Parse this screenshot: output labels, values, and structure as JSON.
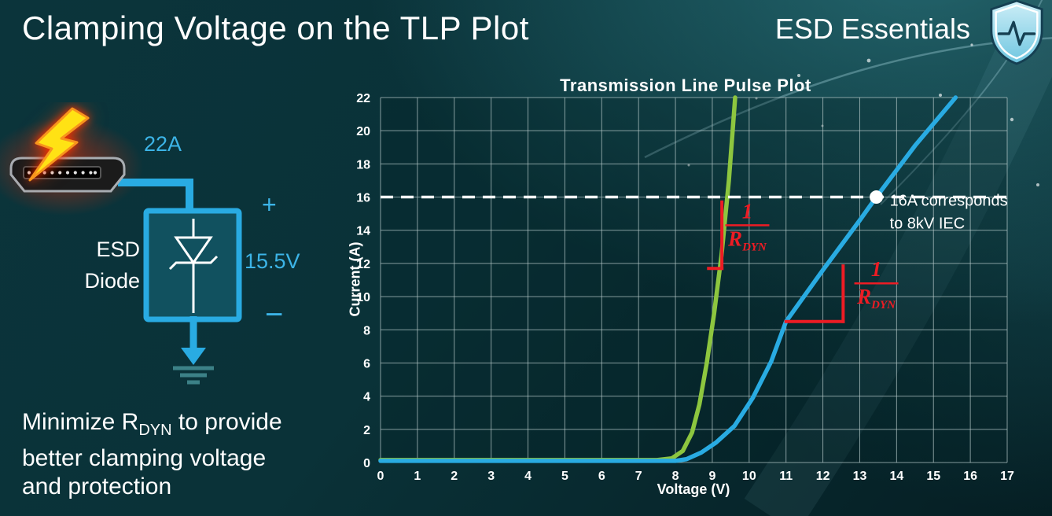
{
  "slide": {
    "title": "Clamping Voltage on the TLP Plot",
    "brand": "ESD Essentials"
  },
  "diagram": {
    "surge_current": "22A",
    "device_line1": "ESD",
    "device_line2": "Diode",
    "plus": "+",
    "clamp_voltage": "15.5V",
    "minus": "−"
  },
  "note": {
    "pre": "Minimize R",
    "sub": "DYN",
    "post": " to provide",
    "line2": "better clamping voltage",
    "line3": "and protection"
  },
  "chart_data": {
    "type": "line",
    "title": "Transmission Line Pulse Plot",
    "xlabel": "Voltage (V)",
    "ylabel": "Current (A)",
    "xlim": [
      0,
      17
    ],
    "ylim": [
      0,
      22
    ],
    "x_ticks": [
      0,
      1,
      2,
      3,
      4,
      5,
      6,
      7,
      8,
      9,
      10,
      11,
      12,
      13,
      14,
      15,
      16,
      17
    ],
    "y_ticks": [
      0,
      2,
      4,
      6,
      8,
      10,
      12,
      14,
      16,
      18,
      20,
      22
    ],
    "grid": true,
    "legend": "none",
    "series": [
      {
        "name": "esd-diode-curve",
        "color": "#8dc63f",
        "points": [
          [
            0,
            0.15
          ],
          [
            7.5,
            0.15
          ],
          [
            7.9,
            0.25
          ],
          [
            8.2,
            0.7
          ],
          [
            8.45,
            1.8
          ],
          [
            8.65,
            3.5
          ],
          [
            8.85,
            6.0
          ],
          [
            9.05,
            9.0
          ],
          [
            9.25,
            12.5
          ],
          [
            9.45,
            17.0
          ],
          [
            9.62,
            22
          ]
        ]
      },
      {
        "name": "comparison-curve",
        "color": "#29abe2",
        "points": [
          [
            0,
            0.1
          ],
          [
            8.0,
            0.1
          ],
          [
            8.3,
            0.2
          ],
          [
            8.7,
            0.6
          ],
          [
            9.1,
            1.2
          ],
          [
            9.6,
            2.2
          ],
          [
            10.1,
            3.9
          ],
          [
            10.6,
            6.1
          ],
          [
            11.0,
            8.5
          ],
          [
            12.0,
            11.6
          ],
          [
            13.0,
            14.6
          ],
          [
            13.45,
            16.0
          ],
          [
            14.5,
            19.1
          ],
          [
            15.6,
            22
          ]
        ]
      }
    ],
    "reference_line": {
      "y": 16,
      "color": "#ffffff",
      "style": "dashed"
    },
    "marker": {
      "x": 13.45,
      "y": 16,
      "color": "#ffffff",
      "label_line1": "16A corresponds",
      "label_line2": "to 8kV IEC"
    },
    "slope_annotations": [
      {
        "color": "#ed1c24",
        "lines": [
          [
            9.26,
            11.7,
            9.26,
            15.7
          ],
          [
            8.9,
            11.7,
            9.26,
            11.7
          ]
        ],
        "label": {
          "numerator": "1",
          "denominator": "R",
          "denominator_sub": "DYN",
          "x": 9.95,
          "y": 14.3
        }
      },
      {
        "color": "#ed1c24",
        "lines": [
          [
            11.0,
            8.5,
            12.55,
            8.5
          ],
          [
            12.55,
            8.5,
            12.55,
            11.85
          ]
        ],
        "label": {
          "numerator": "1",
          "denominator": "R",
          "denominator_sub": "DYN",
          "x": 13.45,
          "y": 10.8
        }
      }
    ]
  }
}
